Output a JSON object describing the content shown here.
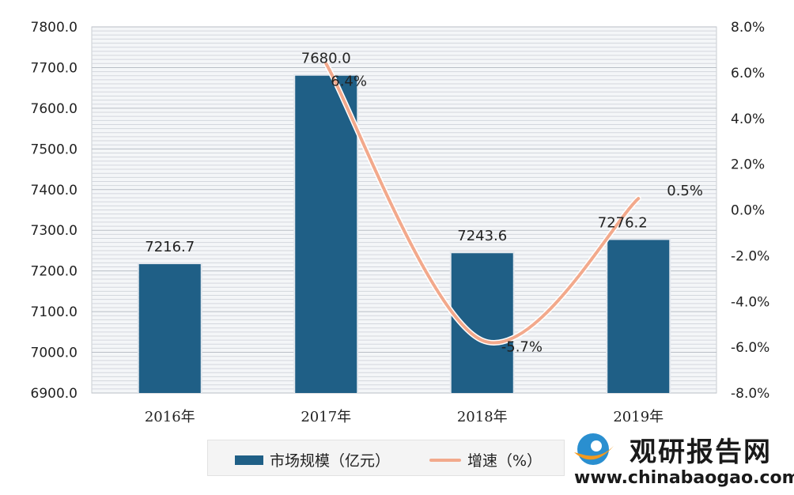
{
  "chart_data": {
    "type": "bar+line",
    "categories": [
      "2016年",
      "2017年",
      "2018年",
      "2019年"
    ],
    "bar_series": {
      "name": "市场规模（亿元）",
      "values": [
        7216.7,
        7680.0,
        7243.6,
        7276.2
      ],
      "color": "#1f5f86"
    },
    "line_series": {
      "name": "增速（%）",
      "values": [
        null,
        6.4,
        -5.7,
        0.5
      ],
      "color": "#f2a98c"
    },
    "bar_labels": [
      "7216.7",
      "7680.0",
      "7243.6",
      "7276.2"
    ],
    "line_labels": [
      "",
      "6.4%",
      "-5.7%",
      "0.5%"
    ],
    "y_left": {
      "min": 6900,
      "max": 7800,
      "ticks": [
        "6900.0",
        "7000.0",
        "7100.0",
        "7200.0",
        "7300.0",
        "7400.0",
        "7500.0",
        "7600.0",
        "7700.0",
        "7800.0"
      ]
    },
    "y_right": {
      "min": -8,
      "max": 8,
      "ticks": [
        "-8.0%",
        "-6.0%",
        "-4.0%",
        "-2.0%",
        "0.0%",
        "2.0%",
        "4.0%",
        "6.0%",
        "8.0%"
      ]
    },
    "grid": true,
    "legend_position": "bottom"
  },
  "legend": {
    "bar_label": "市场规模（亿元）",
    "line_label": "增速（%）"
  },
  "watermark": {
    "brand": "观研报告网",
    "url": "www.chinabaogao.com"
  }
}
